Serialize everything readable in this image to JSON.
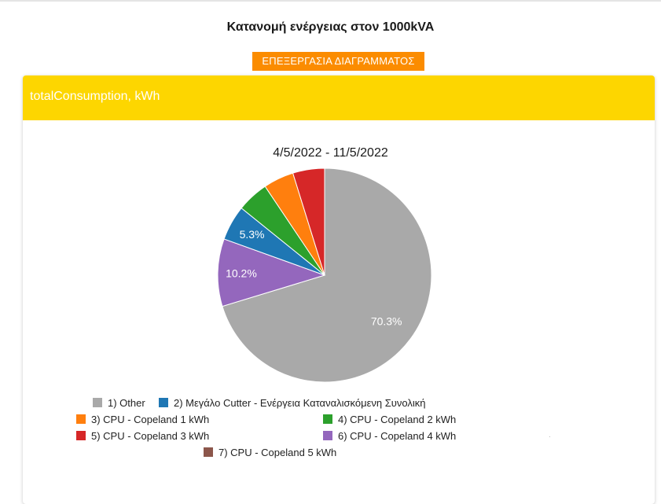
{
  "page": {
    "title": "Κατανομή ενέργειας στον 1000kVA",
    "edit_button_label": "ΕΠΕΞΕΡΓΑΣΙΑ ΔΙΑΓΡΑΜΜΑΤΟΣ"
  },
  "card": {
    "title": "totalConsumption, kWh",
    "header_color": "#fdd600"
  },
  "chart_data": {
    "type": "pie",
    "title": "4/5/2022 - 11/5/2022",
    "categories": [
      "1) Other",
      "2) Μεγάλο Cutter - Ενέργεια Καταναλισκόμενη Συνολική",
      "3) CPU - Copeland 1 kWh",
      "4) CPU - Copeland 2 kWh",
      "5) CPU - Copeland 3 kWh",
      "6) CPU - Copeland 4 kWh",
      "7) CPU - Copeland 5 kWh"
    ],
    "values": [
      70.3,
      5.3,
      4.6,
      4.8,
      4.8,
      10.2,
      0
    ],
    "labels": [
      "70.3%",
      "5.3%",
      "",
      "",
      "",
      "10.2%",
      ""
    ],
    "colors": [
      "#a9a9a9",
      "#1f77b4",
      "#ff7f0e",
      "#2ca02c",
      "#d62728",
      "#9467bd",
      "#8c564b"
    ],
    "draw_order": [
      0,
      5,
      1,
      3,
      2,
      4
    ],
    "legend_position": "bottom"
  }
}
